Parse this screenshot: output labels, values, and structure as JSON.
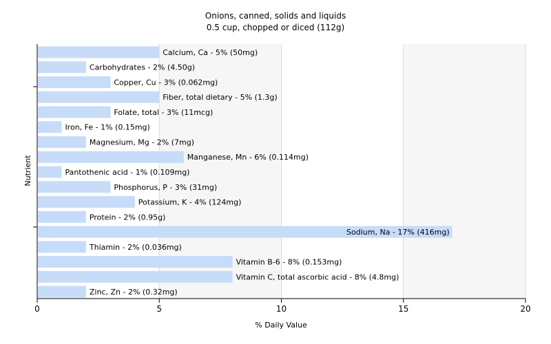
{
  "chart_data": {
    "type": "bar",
    "orientation": "horizontal",
    "title": "Onions, canned, solids and liquids",
    "subtitle": "0.5 cup, chopped or diced (112g)",
    "xlabel": "% Daily Value",
    "ylabel": "Nutrient",
    "xlim": [
      0,
      20
    ],
    "xticks": [
      0,
      5,
      10,
      15,
      20
    ],
    "grid": true,
    "bar_color": "#c6dcf8",
    "categories": [
      "Calcium, Ca",
      "Carbohydrates",
      "Copper, Cu",
      "Fiber, total dietary",
      "Folate, total",
      "Iron, Fe",
      "Magnesium, Mg",
      "Manganese, Mn",
      "Pantothenic acid",
      "Phosphorus, P",
      "Potassium, K",
      "Protein",
      "Sodium, Na",
      "Thiamin",
      "Vitamin B-6",
      "Vitamin C, total ascorbic acid",
      "Zinc, Zn"
    ],
    "values": [
      5,
      2,
      3,
      5,
      3,
      1,
      2,
      6,
      1,
      3,
      4,
      2,
      17,
      2,
      8,
      8,
      2
    ],
    "labels": [
      "Calcium, Ca - 5% (50mg)",
      "Carbohydrates - 2% (4.50g)",
      "Copper, Cu - 3% (0.062mg)",
      "Fiber, total dietary - 5% (1.3g)",
      "Folate, total - 3% (11mcg)",
      "Iron, Fe - 1% (0.15mg)",
      "Magnesium, Mg - 2% (7mg)",
      "Manganese, Mn - 6% (0.114mg)",
      "Pantothenic acid - 1% (0.109mg)",
      "Phosphorus, P - 3% (31mg)",
      "Potassium, K - 4% (124mg)",
      "Protein - 2% (0.95g)",
      "Sodium, Na - 17% (416mg)",
      "Thiamin - 2% (0.036mg)",
      "Vitamin B-6 - 8% (0.153mg)",
      "Vitamin C, total ascorbic acid - 8% (4.8mg)",
      "Zinc, Zn - 2% (0.32mg)"
    ]
  }
}
